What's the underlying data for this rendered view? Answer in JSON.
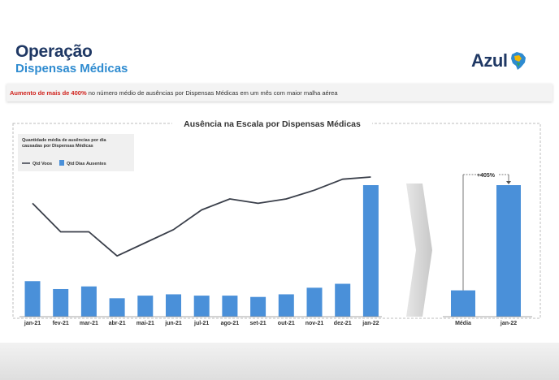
{
  "header": {
    "title_line1": "Operação",
    "title_line2": "Dispensas Médicas",
    "logo_text": "Azul"
  },
  "banner": {
    "highlight": "Aumento de mais de 400%",
    "rest": " no número médio de ausências por Dispensas Médicas em um mês com maior malha aérea"
  },
  "colors": {
    "bar": "#4a90d9",
    "line": "#3a3f4a",
    "title_dark": "#1f3864",
    "title_blue": "#2e8bd0",
    "highlight_red": "#d0231d"
  },
  "chart_data": [
    {
      "type": "bar",
      "title": "Ausência na Escala por Dispensas Médicas",
      "legend_title": "Quantidade média de ausências por dia causadas por Dispensas Médicas",
      "legend_placement": "top-left",
      "grid": false,
      "categories": [
        "jan-21",
        "fev-21",
        "mar-21",
        "abr-21",
        "mai-21",
        "jun-21",
        "jul-21",
        "ago-21",
        "set-21",
        "out-21",
        "nov-21",
        "dez-21",
        "jan-22"
      ],
      "ylim": [
        0,
        100
      ],
      "series": [
        {
          "name": "Qtd Voos",
          "kind": "line",
          "values": [
            55,
            42,
            42,
            31,
            37,
            43,
            52,
            57,
            55,
            57,
            61,
            66,
            67
          ]
        },
        {
          "name": "Qtd Dias Ausentes",
          "kind": "bar",
          "values": [
            27,
            21,
            23,
            14,
            16,
            17,
            16,
            16,
            15,
            17,
            22,
            25,
            100
          ]
        }
      ]
    },
    {
      "type": "bar",
      "categories": [
        "Média",
        "jan-22"
      ],
      "values": [
        20,
        100
      ],
      "ylim": [
        0,
        100
      ],
      "annotations": [
        {
          "text": "+405%"
        }
      ]
    }
  ]
}
